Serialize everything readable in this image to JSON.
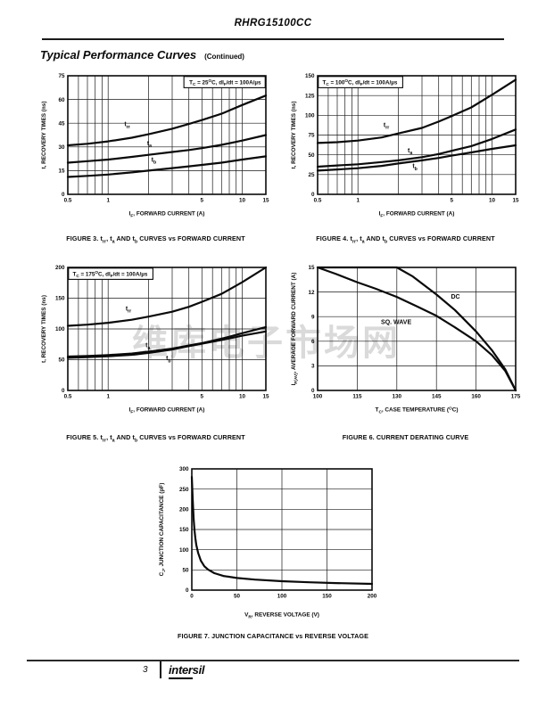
{
  "page": {
    "doc_title": "RHRG15100CC",
    "section_title": "Typical Performance Curves",
    "section_continued": "(Continued)",
    "watermark": "维库电子市场网",
    "footer": {
      "page_number": "3",
      "brand_prefix": "inter",
      "brand_suffix": "sil"
    },
    "colors": {
      "ink": "#0a0a0a",
      "grid": "#1a1a1a",
      "background": "#ffffff"
    }
  },
  "chart_data": [
    {
      "id": "fig3",
      "type": "line",
      "grid": true,
      "caption": "FIGURE 3.  t~rr~, t~a~ AND t~b~ CURVES vs FORWARD CURRENT",
      "annotation": {
        "text": "T~C~ = 25^O^C, dI~F~/dt = 100A/µs",
        "corner": "tr"
      },
      "xlabel": "I~F~, FORWARD CURRENT (A)",
      "ylabel": "t, RECOVERY TIMES (ns)",
      "x_scale": "log",
      "xlim": [
        0.5,
        15
      ],
      "ylim": [
        0,
        75
      ],
      "x_ticks": [
        0.5,
        1,
        5,
        10,
        15
      ],
      "y_ticks": [
        0,
        15,
        30,
        45,
        60,
        75
      ],
      "x_grid": [
        0.6,
        0.7,
        0.8,
        0.9,
        1,
        2,
        3,
        4,
        5,
        6,
        7,
        8,
        9,
        10
      ],
      "series": [
        {
          "name": "trr",
          "label": "t~rr~",
          "label_at": [
            1.32,
            43
          ],
          "points": [
            [
              0.5,
              31
            ],
            [
              0.7,
              32
            ],
            [
              1,
              33.5
            ],
            [
              1.5,
              35.8
            ],
            [
              2,
              38
            ],
            [
              3,
              41.5
            ],
            [
              4,
              44.5
            ],
            [
              5,
              47
            ],
            [
              7,
              51
            ],
            [
              10,
              56.5
            ],
            [
              15,
              62.5
            ]
          ]
        },
        {
          "name": "ta",
          "label": "t~a~",
          "label_at": [
            1.95,
            31
          ],
          "points": [
            [
              0.5,
              20
            ],
            [
              0.7,
              21
            ],
            [
              1,
              22
            ],
            [
              1.5,
              23.7
            ],
            [
              2,
              25
            ],
            [
              3,
              26.8
            ],
            [
              4,
              28
            ],
            [
              5,
              29.2
            ],
            [
              7,
              31.3
            ],
            [
              10,
              34
            ],
            [
              15,
              37.5
            ]
          ]
        },
        {
          "name": "tb",
          "label": "t~b~",
          "label_at": [
            2.1,
            20.5
          ],
          "points": [
            [
              0.5,
              11
            ],
            [
              0.7,
              11.7
            ],
            [
              1,
              12.5
            ],
            [
              1.5,
              13.9
            ],
            [
              2,
              15
            ],
            [
              3,
              16.6
            ],
            [
              4,
              17.7
            ],
            [
              5,
              18.6
            ],
            [
              7,
              20
            ],
            [
              10,
              22
            ],
            [
              15,
              24
            ]
          ]
        }
      ]
    },
    {
      "id": "fig4",
      "type": "line",
      "grid": true,
      "caption": "FIGURE 4.  t~rr~, t~a~ AND t~b~ CURVES vs FORWARD CURRENT",
      "annotation": {
        "text": "T~C~ = 100^O^C, dI~F~/dt = 100A/µs",
        "corner": "tl"
      },
      "xlabel": "I~F~, FORWARD CURRENT (A)",
      "ylabel": "t, RECOVERY TIMES (ns)",
      "x_scale": "log",
      "xlim": [
        0.5,
        15
      ],
      "ylim": [
        0,
        150
      ],
      "x_ticks": [
        0.5,
        1,
        5,
        10,
        15
      ],
      "y_ticks": [
        0,
        25,
        50,
        75,
        100,
        125,
        150
      ],
      "x_grid": [
        0.6,
        0.7,
        0.8,
        0.9,
        1,
        2,
        3,
        4,
        5,
        6,
        7,
        8,
        9,
        10
      ],
      "series": [
        {
          "name": "trr",
          "label": "t~rr~",
          "label_at": [
            1.55,
            85
          ],
          "points": [
            [
              0.5,
              65
            ],
            [
              0.7,
              66
            ],
            [
              1,
              68
            ],
            [
              1.5,
              72
            ],
            [
              2,
              77
            ],
            [
              3,
              84
            ],
            [
              4,
              92
            ],
            [
              5,
              99
            ],
            [
              7,
              110
            ],
            [
              10,
              126
            ],
            [
              15,
              145
            ]
          ]
        },
        {
          "name": "ta",
          "label": "t~a~",
          "label_at": [
            2.35,
            53
          ],
          "points": [
            [
              0.5,
              35
            ],
            [
              0.7,
              36.5
            ],
            [
              1,
              38
            ],
            [
              1.5,
              40.8
            ],
            [
              2,
              43
            ],
            [
              3,
              47
            ],
            [
              4,
              51
            ],
            [
              5,
              55
            ],
            [
              7,
              61
            ],
            [
              10,
              70
            ],
            [
              15,
              82
            ]
          ]
        },
        {
          "name": "tb",
          "label": "t~b~",
          "label_at": [
            2.55,
            33
          ],
          "points": [
            [
              0.5,
              30
            ],
            [
              0.7,
              31.5
            ],
            [
              1,
              33
            ],
            [
              1.5,
              36
            ],
            [
              2,
              39
            ],
            [
              3,
              43
            ],
            [
              4,
              46
            ],
            [
              5,
              49
            ],
            [
              7,
              53
            ],
            [
              10,
              57.5
            ],
            [
              15,
              62
            ]
          ]
        }
      ]
    },
    {
      "id": "fig5",
      "type": "line",
      "grid": true,
      "caption": "FIGURE 5.  t~rr~, t~a~ AND t~b~ CURVES vs FORWARD CURRENT",
      "annotation": {
        "text": "T~C~ = 175^O^C, dI~F~/dt = 100A/µs",
        "corner": "tl"
      },
      "xlabel": "I~F~, FORWARD CURRENT (A)",
      "ylabel": "t, RECOVERY TIMES (ns)",
      "x_scale": "log",
      "xlim": [
        0.5,
        15
      ],
      "ylim": [
        0,
        200
      ],
      "x_ticks": [
        0.5,
        1,
        5,
        10,
        15
      ],
      "y_ticks": [
        0,
        50,
        100,
        150,
        200
      ],
      "x_grid": [
        0.6,
        0.7,
        0.8,
        0.9,
        1,
        2,
        3,
        4,
        5,
        6,
        7,
        8,
        9,
        10
      ],
      "series": [
        {
          "name": "trr",
          "label": "t~rr~",
          "label_at": [
            1.35,
            130
          ],
          "points": [
            [
              0.5,
              105
            ],
            [
              0.7,
              107
            ],
            [
              1,
              110
            ],
            [
              1.5,
              115
            ],
            [
              2,
              120
            ],
            [
              3,
              128
            ],
            [
              4,
              136
            ],
            [
              5,
              144
            ],
            [
              7,
              157
            ],
            [
              10,
              176
            ],
            [
              15,
              200
            ]
          ]
        },
        {
          "name": "ta",
          "label": "t~a~",
          "label_at": [
            1.9,
            70
          ],
          "points": [
            [
              0.5,
              55
            ],
            [
              0.7,
              56
            ],
            [
              1,
              57.5
            ],
            [
              1.5,
              60
            ],
            [
              2,
              63
            ],
            [
              3,
              68
            ],
            [
              4,
              73
            ],
            [
              5,
              77
            ],
            [
              7,
              84
            ],
            [
              10,
              93
            ],
            [
              15,
              103
            ]
          ]
        },
        {
          "name": "tb",
          "label": "t~b~",
          "label_at": [
            2.7,
            49
          ],
          "points": [
            [
              0.5,
              53
            ],
            [
              0.7,
              54
            ],
            [
              1,
              55.5
            ],
            [
              1.5,
              58
            ],
            [
              2,
              61
            ],
            [
              3,
              66.5
            ],
            [
              4,
              72
            ],
            [
              5,
              76
            ],
            [
              7,
              82
            ],
            [
              10,
              89
            ],
            [
              15,
              96
            ]
          ]
        }
      ]
    },
    {
      "id": "fig6",
      "type": "line",
      "grid": true,
      "caption": "FIGURE 6.  CURRENT DERATING CURVE",
      "annotation": null,
      "xlabel": "T~C~, CASE TEMPERATURE (^O^C)",
      "ylabel": "I~F(AV)~, AVERAGE FORWARD CURRENT (A)",
      "x_scale": "linear",
      "xlim": [
        100,
        175
      ],
      "ylim": [
        0,
        15
      ],
      "x_ticks": [
        100,
        115,
        130,
        145,
        160,
        175
      ],
      "y_ticks": [
        0,
        3,
        6,
        9,
        12,
        15
      ],
      "x_grid": [
        115,
        130,
        145,
        160
      ],
      "series": [
        {
          "name": "dc",
          "label": "DC",
          "label_at": [
            150.5,
            11.2
          ],
          "points": [
            [
              100,
              15
            ],
            [
              130,
              15
            ],
            [
              136,
              13.9
            ],
            [
              145,
              11.7
            ],
            [
              152,
              9.8
            ],
            [
              160,
              7.2
            ],
            [
              166,
              4.9
            ],
            [
              171,
              2.6
            ],
            [
              175,
              0
            ]
          ]
        },
        {
          "name": "sq-wave",
          "label": "SQ. WAVE",
          "label_at": [
            124,
            8.1
          ],
          "points": [
            [
              100,
              15
            ],
            [
              107,
              14.2
            ],
            [
              115,
              13.2
            ],
            [
              122,
              12.4
            ],
            [
              130,
              11.4
            ],
            [
              138,
              10.2
            ],
            [
              145,
              9.1
            ],
            [
              152,
              7.7
            ],
            [
              160,
              6
            ],
            [
              166,
              4.3
            ],
            [
              171,
              2.4
            ],
            [
              175,
              0
            ]
          ]
        }
      ]
    },
    {
      "id": "fig7",
      "type": "line",
      "grid": true,
      "caption": "FIGURE 7.  JUNCTION CAPACITANCE vs REVERSE VOLTAGE",
      "annotation": null,
      "xlabel": "V~R~, REVERSE VOLTAGE (V)",
      "ylabel": "C~J~, JUNCTION CAPACITANCE (pF)",
      "x_scale": "linear",
      "xlim": [
        0,
        200
      ],
      "ylim": [
        0,
        300
      ],
      "x_ticks": [
        0,
        50,
        100,
        150,
        200
      ],
      "y_ticks": [
        0,
        50,
        100,
        150,
        200,
        250,
        300
      ],
      "x_grid": [
        50,
        100,
        150
      ],
      "series": [
        {
          "name": "cj",
          "label": null,
          "label_at": null,
          "points": [
            [
              0,
              280
            ],
            [
              1,
              225
            ],
            [
              2,
              178
            ],
            [
              3,
              148
            ],
            [
              4,
              128
            ],
            [
              5,
              112
            ],
            [
              7,
              92
            ],
            [
              10,
              73
            ],
            [
              14,
              59
            ],
            [
              18,
              51
            ],
            [
              25,
              42
            ],
            [
              35,
              35
            ],
            [
              50,
              30
            ],
            [
              70,
              26
            ],
            [
              100,
              22
            ],
            [
              130,
              19.5
            ],
            [
              160,
              17.5
            ],
            [
              200,
              15.5
            ]
          ]
        }
      ]
    }
  ]
}
